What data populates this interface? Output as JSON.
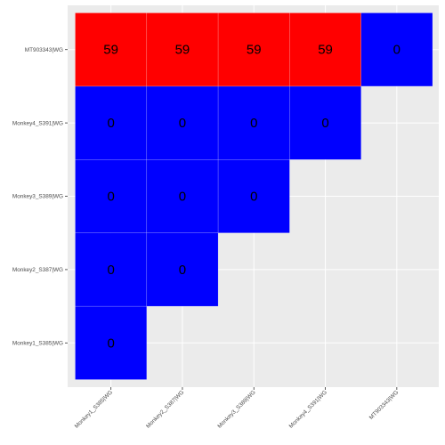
{
  "chart_data": {
    "type": "heatmap",
    "title": "",
    "xlabel": "",
    "ylabel": "",
    "x_categories": [
      "Monkey1_S385|WG",
      "Monkey2_S387|WG",
      "Monkey3_S389|WG",
      "Monkey4_S391|WG",
      "MT903343|WG"
    ],
    "y_categories": [
      "Monkey1_S385|WG",
      "Monkey2_S387|WG",
      "Monkey3_S389|WG",
      "Monkey4_S391|WG",
      "MT903343|WG"
    ],
    "cells": [
      {
        "x": "Monkey1_S385|WG",
        "y": "Monkey1_S385|WG",
        "value": 0
      },
      {
        "x": "Monkey1_S385|WG",
        "y": "Monkey2_S387|WG",
        "value": 0
      },
      {
        "x": "Monkey2_S387|WG",
        "y": "Monkey2_S387|WG",
        "value": 0
      },
      {
        "x": "Monkey1_S385|WG",
        "y": "Monkey3_S389|WG",
        "value": 0
      },
      {
        "x": "Monkey2_S387|WG",
        "y": "Monkey3_S389|WG",
        "value": 0
      },
      {
        "x": "Monkey3_S389|WG",
        "y": "Monkey3_S389|WG",
        "value": 0
      },
      {
        "x": "Monkey1_S385|WG",
        "y": "Monkey4_S391|WG",
        "value": 0
      },
      {
        "x": "Monkey2_S387|WG",
        "y": "Monkey4_S391|WG",
        "value": 0
      },
      {
        "x": "Monkey3_S389|WG",
        "y": "Monkey4_S391|WG",
        "value": 0
      },
      {
        "x": "Monkey4_S391|WG",
        "y": "Monkey4_S391|WG",
        "value": 0
      },
      {
        "x": "Monkey1_S385|WG",
        "y": "MT903343|WG",
        "value": 59
      },
      {
        "x": "Monkey2_S387|WG",
        "y": "MT903343|WG",
        "value": 59
      },
      {
        "x": "Monkey3_S389|WG",
        "y": "MT903343|WG",
        "value": 59
      },
      {
        "x": "Monkey4_S391|WG",
        "y": "MT903343|WG",
        "value": 59
      },
      {
        "x": "MT903343|WG",
        "y": "MT903343|WG",
        "value": 0
      }
    ],
    "colors": {
      "high": "#ff0000",
      "low": "#0000ff",
      "panel_background": "#ebebeb",
      "grid": "#ffffff"
    },
    "grid": true,
    "legend": "none"
  }
}
